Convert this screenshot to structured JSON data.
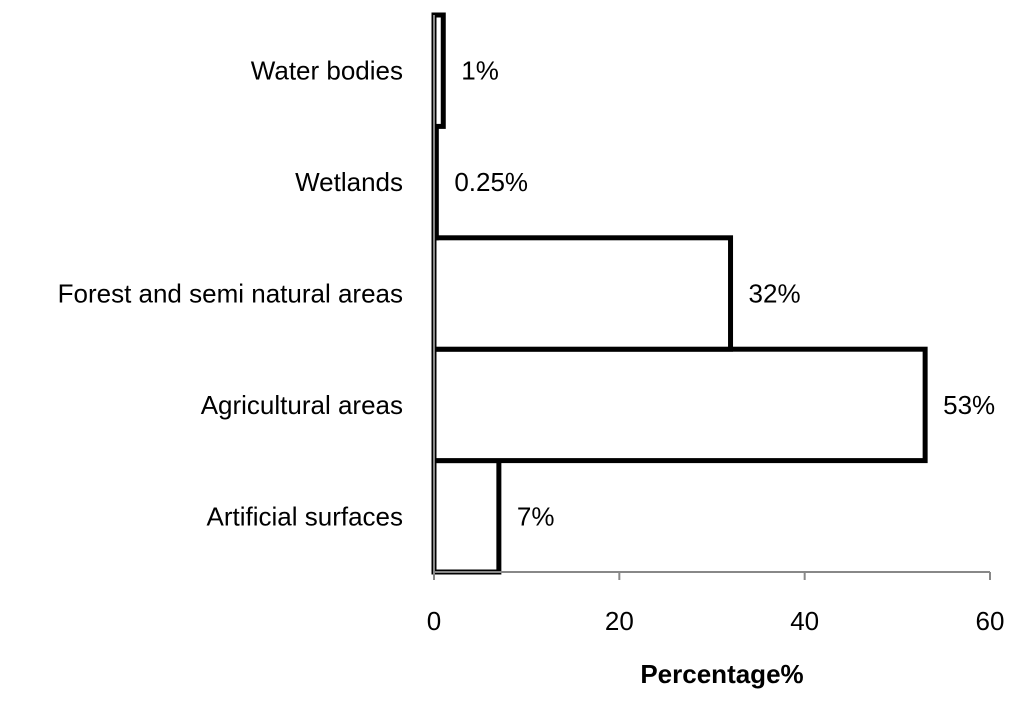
{
  "chart_data": {
    "type": "bar",
    "orientation": "horizontal",
    "categories": [
      "Artificial surfaces",
      "Agricultural areas",
      "Forest and semi natural areas",
      "Wetlands",
      "Water bodies"
    ],
    "values": [
      7,
      53,
      32,
      0.25,
      1
    ],
    "data_labels": [
      "7%",
      "53%",
      "32%",
      "0.25%",
      "1%"
    ],
    "xlabel": "Percentage%",
    "ylabel": "",
    "xlim": [
      0,
      60
    ],
    "xticks": [
      0,
      20,
      40,
      60
    ],
    "grid": false,
    "legend": "none",
    "colors": {
      "bar_fill": "#ffffff",
      "bar_stroke": "#000000",
      "axis": "#888888"
    }
  }
}
